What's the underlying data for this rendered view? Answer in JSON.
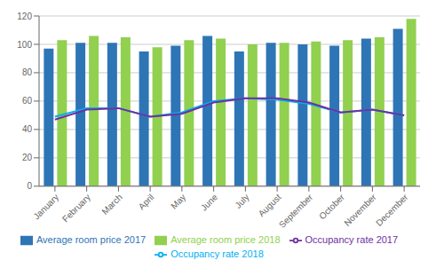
{
  "chart_data": {
    "type": "bar",
    "categories": [
      "January",
      "February",
      "March",
      "April",
      "May",
      "June",
      "July",
      "August",
      "September",
      "October",
      "November",
      "December"
    ],
    "series": [
      {
        "name": "Average room price 2017",
        "type": "bar",
        "color": "#2e75b6",
        "values": [
          97,
          101,
          101,
          95,
          99,
          106,
          95,
          101,
          100,
          99,
          104,
          111
        ]
      },
      {
        "name": "Average room price 2018",
        "type": "bar",
        "color": "#92d050",
        "values": [
          103,
          106,
          105,
          98,
          103,
          104,
          100,
          101,
          102,
          103,
          105,
          118
        ]
      },
      {
        "name": "Occupancy rate 2018",
        "type": "line",
        "color": "#00b0f0",
        "values": [
          49,
          55,
          55,
          49,
          52,
          60,
          62,
          61,
          58,
          52,
          54,
          50
        ]
      },
      {
        "name": "Occupancy rate 2017",
        "type": "line",
        "color": "#7030a0",
        "values": [
          47,
          54,
          55,
          49,
          51,
          59,
          62,
          62,
          59,
          52,
          54,
          50
        ]
      }
    ],
    "ylim": [
      0,
      120
    ],
    "yticks": [
      0,
      20,
      40,
      60,
      80,
      100,
      120
    ],
    "grid": true,
    "legend": "bottom"
  }
}
